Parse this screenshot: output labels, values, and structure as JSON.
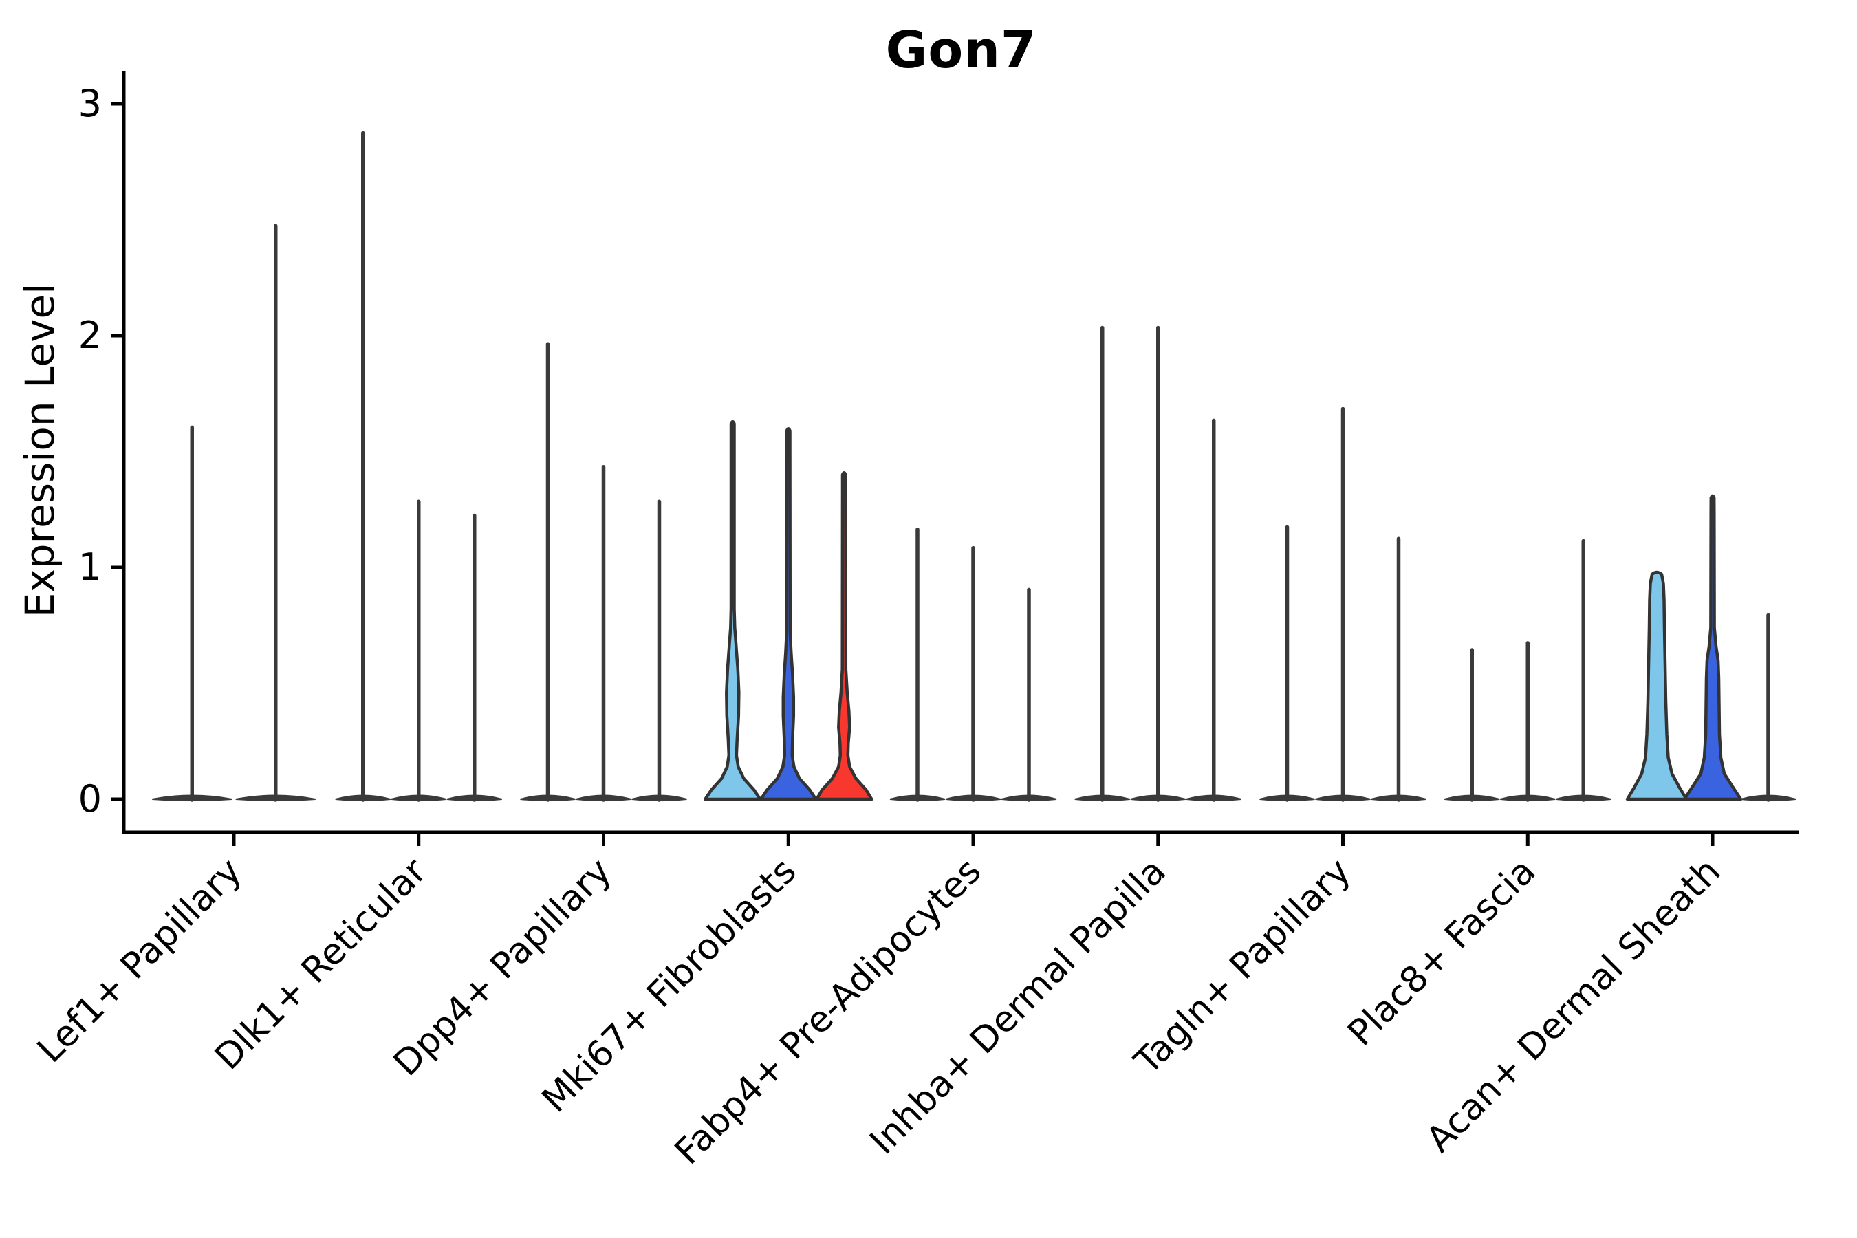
{
  "title": "Gon7",
  "y_axis": {
    "label": "Expression Level"
  },
  "colors": {
    "light_blue": "#7EC6EA",
    "dark_blue": "#3A63DF",
    "red": "#F8372E",
    "outline": "#333333",
    "spike": "#3A3A3A",
    "axis": "#000000",
    "text": "#000000"
  },
  "chart_data": {
    "type": "violin",
    "title": "Gon7",
    "xlabel": "",
    "ylabel": "Expression Level",
    "ylim": [
      0,
      3
    ],
    "yticks": [
      0,
      1,
      2,
      3
    ],
    "legend": "none",
    "grid": false,
    "categories": [
      "Lef1+ Papillary",
      "Dlk1+ Reticular",
      "Dpp4+ Papillary",
      "Mki67+ Fibroblasts",
      "Fabp4+ Pre-Adipocytes",
      "Inhba+ Dermal Papilla",
      "Tagln+ Papillary",
      "Plac8+ Fascia",
      "Acan+ Dermal Sheath"
    ],
    "groups": [
      {
        "label": "Lef1+ Papillary",
        "violins": [
          {
            "max": 1.61,
            "fill": null
          },
          {
            "max": 2.48,
            "fill": null
          }
        ]
      },
      {
        "label": "Dlk1+ Reticular",
        "violins": [
          {
            "max": 2.88,
            "fill": null
          },
          {
            "max": 1.29,
            "fill": null
          },
          {
            "max": 1.23,
            "fill": null
          }
        ]
      },
      {
        "label": "Dpp4+ Papillary",
        "violins": [
          {
            "max": 1.97,
            "fill": null
          },
          {
            "max": 1.44,
            "fill": null
          },
          {
            "max": 1.29,
            "fill": null
          }
        ]
      },
      {
        "label": "Mki67+ Fibroblasts",
        "violins": [
          {
            "max": 1.62,
            "fill": "light_blue",
            "shape": [
              [
                0,
                40
              ],
              [
                0.04,
                31
              ],
              [
                0.09,
                16
              ],
              [
                0.14,
                8
              ],
              [
                0.19,
                5.5
              ],
              [
                0.26,
                6.5
              ],
              [
                0.36,
                8.5
              ],
              [
                0.46,
                9
              ],
              [
                0.56,
                7.5
              ],
              [
                0.66,
                5
              ],
              [
                0.74,
                3
              ],
              [
                0.82,
                2.3
              ],
              [
                1.55,
                2.3
              ],
              [
                1.62,
                2.2
              ]
            ]
          },
          {
            "max": 1.59,
            "fill": "dark_blue",
            "shape": [
              [
                0,
                40
              ],
              [
                0.04,
                31
              ],
              [
                0.09,
                16
              ],
              [
                0.14,
                8
              ],
              [
                0.19,
                5.5
              ],
              [
                0.26,
                6
              ],
              [
                0.36,
                7.5
              ],
              [
                0.44,
                7.5
              ],
              [
                0.54,
                6
              ],
              [
                0.63,
                4
              ],
              [
                0.72,
                2.5
              ],
              [
                1.52,
                2.3
              ],
              [
                1.59,
                2.2
              ]
            ]
          },
          {
            "max": 1.4,
            "fill": "red",
            "shape": [
              [
                0,
                40
              ],
              [
                0.04,
                32
              ],
              [
                0.09,
                17
              ],
              [
                0.14,
                8
              ],
              [
                0.19,
                5.5
              ],
              [
                0.24,
                6
              ],
              [
                0.31,
                8
              ],
              [
                0.38,
                7
              ],
              [
                0.46,
                4.5
              ],
              [
                0.56,
                2.6
              ],
              [
                1.33,
                2.3
              ],
              [
                1.4,
                2.2
              ]
            ]
          }
        ]
      },
      {
        "label": "Fabp4+ Pre-Adipocytes",
        "violins": [
          {
            "max": 1.17,
            "fill": null
          },
          {
            "max": 1.09,
            "fill": null
          },
          {
            "max": 0.91,
            "fill": null
          }
        ]
      },
      {
        "label": "Inhba+ Dermal Papilla",
        "violins": [
          {
            "max": 2.04,
            "fill": null
          },
          {
            "max": 2.04,
            "fill": null
          },
          {
            "max": 1.64,
            "fill": null
          }
        ]
      },
      {
        "label": "Tagln+ Papillary",
        "violins": [
          {
            "max": 1.18,
            "fill": null
          },
          {
            "max": 1.69,
            "fill": null
          },
          {
            "max": 1.13,
            "fill": null
          }
        ]
      },
      {
        "label": "Plac8+ Fascia",
        "violins": [
          {
            "max": 0.65,
            "fill": null
          },
          {
            "max": 0.68,
            "fill": null
          },
          {
            "max": 1.12,
            "fill": null
          }
        ]
      },
      {
        "label": "Acan+ Dermal Sheath",
        "violins": [
          {
            "max": 0.97,
            "fill": "light_blue",
            "shape": [
              [
                0,
                43
              ],
              [
                0.05,
                33
              ],
              [
                0.11,
                22
              ],
              [
                0.18,
                16.5
              ],
              [
                0.28,
                14.5
              ],
              [
                0.42,
                13
              ],
              [
                0.58,
                12
              ],
              [
                0.74,
                11
              ],
              [
                0.86,
                10.5
              ],
              [
                0.93,
                9.5
              ],
              [
                0.97,
                7
              ]
            ]
          },
          {
            "max": 1.3,
            "fill": "dark_blue",
            "shape": [
              [
                0,
                41
              ],
              [
                0.05,
                30
              ],
              [
                0.11,
                17
              ],
              [
                0.18,
                12
              ],
              [
                0.28,
                10
              ],
              [
                0.4,
                9.5
              ],
              [
                0.52,
                9
              ],
              [
                0.6,
                8
              ],
              [
                0.66,
                5
              ],
              [
                0.74,
                2.6
              ],
              [
                1.24,
                2.3
              ],
              [
                1.3,
                2.2
              ]
            ]
          },
          {
            "max": 0.8,
            "fill": null
          }
        ]
      }
    ]
  }
}
